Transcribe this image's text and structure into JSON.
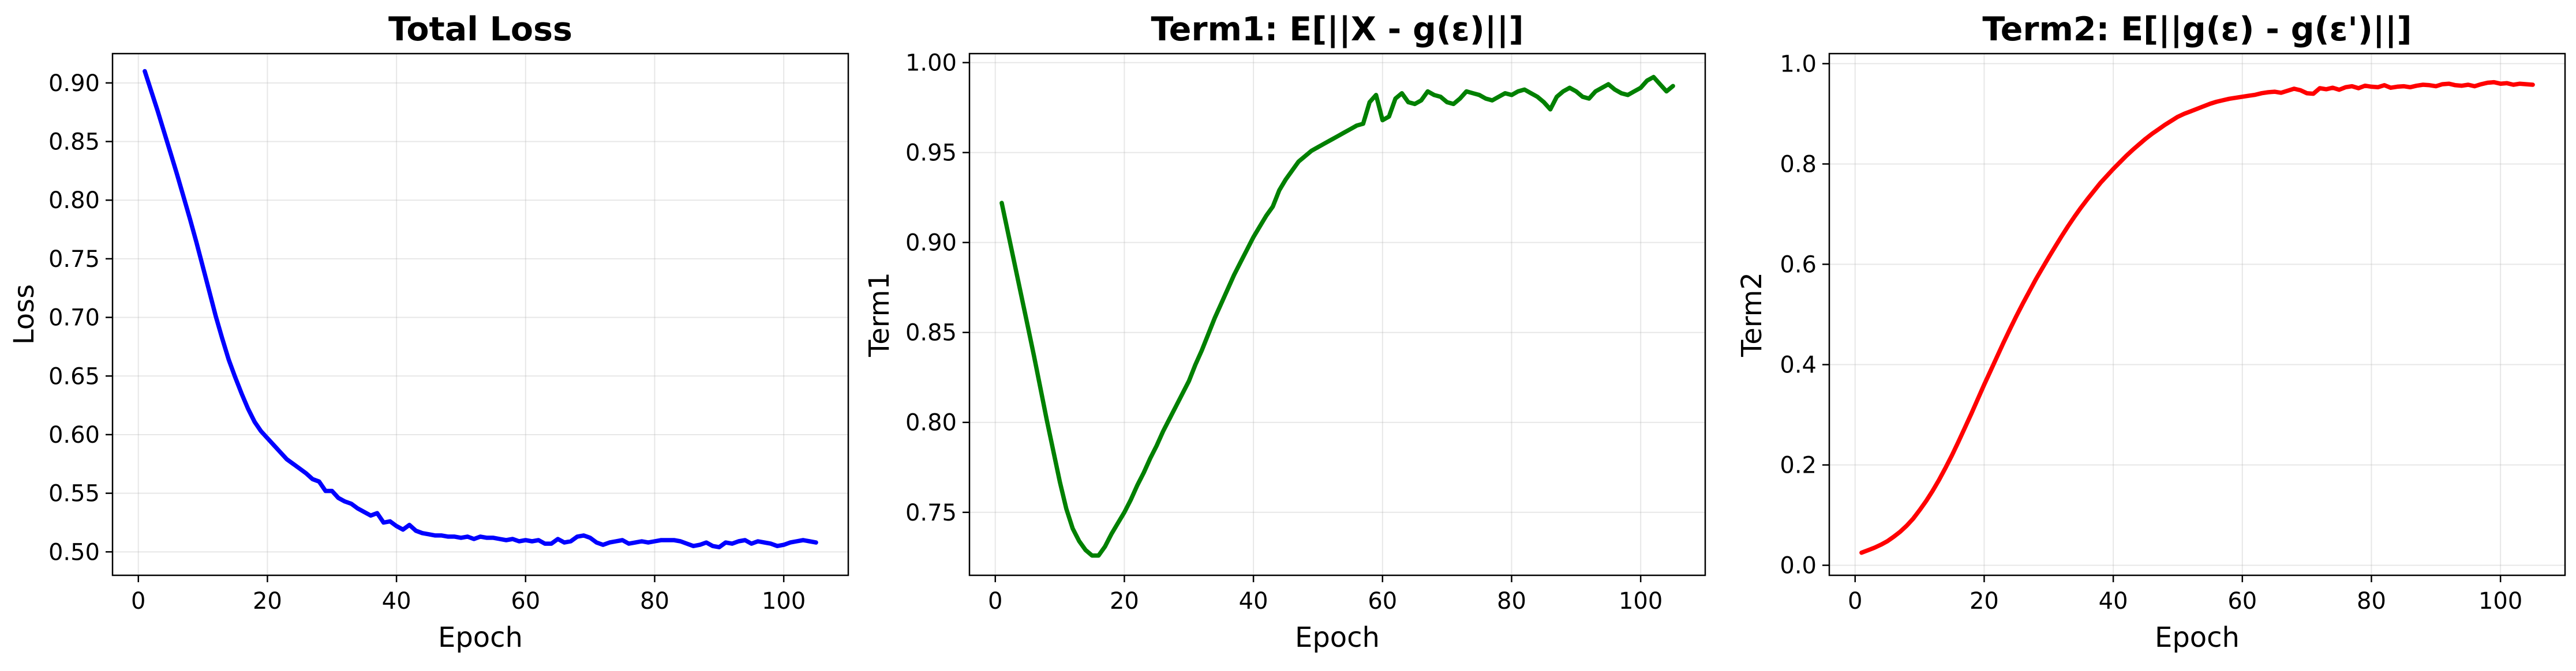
{
  "chart_data": [
    {
      "type": "line",
      "title": "Total Loss",
      "xlabel": "Epoch",
      "ylabel": "Loss",
      "xlim": [
        -4,
        110
      ],
      "ylim": [
        0.48,
        0.925
      ],
      "xticks": [
        0,
        20,
        40,
        60,
        80,
        100
      ],
      "xtick_labels": [
        "0",
        "20",
        "40",
        "60",
        "80",
        "100"
      ],
      "yticks": [
        0.5,
        0.55,
        0.6,
        0.65,
        0.7,
        0.75,
        0.8,
        0.85,
        0.9
      ],
      "ytick_labels": [
        "0.50",
        "0.55",
        "0.60",
        "0.65",
        "0.70",
        "0.75",
        "0.80",
        "0.85",
        "0.90"
      ],
      "grid": true,
      "color": "#0000ff",
      "series": [
        {
          "x": [
            1,
            2,
            3,
            4,
            5,
            6,
            7,
            8,
            9,
            10,
            11,
            12,
            13,
            14,
            15,
            16,
            17,
            18,
            19,
            20,
            21,
            22,
            23,
            24,
            25,
            26,
            27,
            28,
            29,
            30,
            31,
            32,
            33,
            34,
            35,
            36,
            37,
            38,
            39,
            40,
            41,
            42,
            43,
            44,
            45,
            46,
            47,
            48,
            49,
            50,
            51,
            52,
            53,
            54,
            55,
            56,
            57,
            58,
            59,
            60,
            61,
            62,
            63,
            64,
            65,
            66,
            67,
            68,
            69,
            70,
            71,
            72,
            73,
            74,
            75,
            76,
            77,
            78,
            79,
            80,
            81,
            82,
            83,
            84,
            85,
            86,
            87,
            88,
            89,
            90,
            91,
            92,
            93,
            94,
            95,
            96,
            97,
            98,
            99,
            100,
            101,
            102,
            103,
            104,
            105
          ],
          "values": [
            0.91,
            0.893,
            0.876,
            0.858,
            0.84,
            0.822,
            0.803,
            0.784,
            0.764,
            0.743,
            0.722,
            0.701,
            0.682,
            0.664,
            0.649,
            0.635,
            0.622,
            0.611,
            0.603,
            0.597,
            0.591,
            0.585,
            0.579,
            0.575,
            0.571,
            0.567,
            0.562,
            0.56,
            0.552,
            0.552,
            0.546,
            0.543,
            0.541,
            0.537,
            0.534,
            0.531,
            0.533,
            0.525,
            0.526,
            0.522,
            0.519,
            0.523,
            0.518,
            0.516,
            0.515,
            0.514,
            0.514,
            0.513,
            0.513,
            0.512,
            0.513,
            0.511,
            0.513,
            0.512,
            0.512,
            0.511,
            0.51,
            0.511,
            0.509,
            0.51,
            0.509,
            0.51,
            0.507,
            0.507,
            0.511,
            0.508,
            0.509,
            0.513,
            0.514,
            0.512,
            0.508,
            0.506,
            0.508,
            0.509,
            0.51,
            0.507,
            0.508,
            0.509,
            0.508,
            0.509,
            0.51,
            0.51,
            0.51,
            0.509,
            0.507,
            0.505,
            0.506,
            0.508,
            0.505,
            0.504,
            0.508,
            0.507,
            0.509,
            0.51,
            0.507,
            0.509,
            0.508,
            0.507,
            0.505,
            0.506,
            0.508,
            0.509,
            0.51,
            0.509,
            0.508
          ]
        }
      ]
    },
    {
      "type": "line",
      "title": "Term1: E[||X - g(ε)||]",
      "xlabel": "Epoch",
      "ylabel": "Term1",
      "xlim": [
        -4,
        110
      ],
      "ylim": [
        0.715,
        1.005
      ],
      "xticks": [
        0,
        20,
        40,
        60,
        80,
        100
      ],
      "xtick_labels": [
        "0",
        "20",
        "40",
        "60",
        "80",
        "100"
      ],
      "yticks": [
        0.75,
        0.8,
        0.85,
        0.9,
        0.95,
        1.0
      ],
      "ytick_labels": [
        "0.75",
        "0.80",
        "0.85",
        "0.90",
        "0.95",
        "1.00"
      ],
      "grid": true,
      "color": "#008000",
      "series": [
        {
          "x": [
            1,
            2,
            3,
            4,
            5,
            6,
            7,
            8,
            9,
            10,
            11,
            12,
            13,
            14,
            15,
            16,
            17,
            18,
            19,
            20,
            21,
            22,
            23,
            24,
            25,
            26,
            27,
            28,
            29,
            30,
            31,
            32,
            33,
            34,
            35,
            36,
            37,
            38,
            39,
            40,
            41,
            42,
            43,
            44,
            45,
            46,
            47,
            48,
            49,
            50,
            51,
            52,
            53,
            54,
            55,
            56,
            57,
            58,
            59,
            60,
            61,
            62,
            63,
            64,
            65,
            66,
            67,
            68,
            69,
            70,
            71,
            72,
            73,
            74,
            75,
            76,
            77,
            78,
            79,
            80,
            81,
            82,
            83,
            84,
            85,
            86,
            87,
            88,
            89,
            90,
            91,
            92,
            93,
            94,
            95,
            96,
            97,
            98,
            99,
            100,
            101,
            102,
            103,
            104,
            105
          ],
          "values": [
            0.922,
            0.905,
            0.888,
            0.871,
            0.854,
            0.837,
            0.819,
            0.801,
            0.784,
            0.767,
            0.752,
            0.741,
            0.734,
            0.729,
            0.726,
            0.726,
            0.731,
            0.738,
            0.744,
            0.75,
            0.757,
            0.765,
            0.772,
            0.78,
            0.787,
            0.795,
            0.802,
            0.809,
            0.816,
            0.823,
            0.832,
            0.84,
            0.849,
            0.858,
            0.866,
            0.874,
            0.882,
            0.889,
            0.896,
            0.903,
            0.909,
            0.915,
            0.92,
            0.929,
            0.935,
            0.94,
            0.945,
            0.948,
            0.951,
            0.953,
            0.955,
            0.957,
            0.959,
            0.961,
            0.963,
            0.965,
            0.966,
            0.978,
            0.982,
            0.968,
            0.97,
            0.98,
            0.983,
            0.978,
            0.977,
            0.979,
            0.984,
            0.982,
            0.981,
            0.978,
            0.977,
            0.98,
            0.984,
            0.983,
            0.982,
            0.98,
            0.979,
            0.981,
            0.983,
            0.982,
            0.984,
            0.985,
            0.983,
            0.981,
            0.978,
            0.974,
            0.981,
            0.984,
            0.986,
            0.984,
            0.981,
            0.98,
            0.984,
            0.986,
            0.988,
            0.985,
            0.983,
            0.982,
            0.984,
            0.986,
            0.99,
            0.992,
            0.988,
            0.984,
            0.987
          ]
        }
      ]
    },
    {
      "type": "line",
      "title": "Term2: E[||g(ε) - g(ε')||]",
      "xlabel": "Epoch",
      "ylabel": "Term2",
      "xlim": [
        -4,
        110
      ],
      "ylim": [
        -0.02,
        1.02
      ],
      "xticks": [
        0,
        20,
        40,
        60,
        80,
        100
      ],
      "xtick_labels": [
        "0",
        "20",
        "40",
        "60",
        "80",
        "100"
      ],
      "yticks": [
        0.0,
        0.2,
        0.4,
        0.6,
        0.8,
        1.0
      ],
      "ytick_labels": [
        "0.0",
        "0.2",
        "0.4",
        "0.6",
        "0.8",
        "1.0"
      ],
      "grid": true,
      "color": "#ff0000",
      "series": [
        {
          "x": [
            1,
            2,
            3,
            4,
            5,
            6,
            7,
            8,
            9,
            10,
            11,
            12,
            13,
            14,
            15,
            16,
            17,
            18,
            19,
            20,
            21,
            22,
            23,
            24,
            25,
            26,
            27,
            28,
            29,
            30,
            31,
            32,
            33,
            34,
            35,
            36,
            37,
            38,
            39,
            40,
            41,
            42,
            43,
            44,
            45,
            46,
            47,
            48,
            49,
            50,
            51,
            52,
            53,
            54,
            55,
            56,
            57,
            58,
            59,
            60,
            61,
            62,
            63,
            64,
            65,
            66,
            67,
            68,
            69,
            70,
            71,
            72,
            73,
            74,
            75,
            76,
            77,
            78,
            79,
            80,
            81,
            82,
            83,
            84,
            85,
            86,
            87,
            88,
            89,
            90,
            91,
            92,
            93,
            94,
            95,
            96,
            97,
            98,
            99,
            100,
            101,
            102,
            103,
            104,
            105
          ],
          "values": [
            0.025,
            0.03,
            0.035,
            0.041,
            0.048,
            0.057,
            0.067,
            0.079,
            0.093,
            0.11,
            0.128,
            0.148,
            0.17,
            0.194,
            0.219,
            0.246,
            0.274,
            0.302,
            0.331,
            0.36,
            0.388,
            0.416,
            0.444,
            0.471,
            0.497,
            0.522,
            0.546,
            0.57,
            0.592,
            0.614,
            0.635,
            0.656,
            0.676,
            0.695,
            0.713,
            0.73,
            0.746,
            0.762,
            0.776,
            0.79,
            0.803,
            0.816,
            0.828,
            0.839,
            0.85,
            0.86,
            0.869,
            0.878,
            0.886,
            0.894,
            0.9,
            0.905,
            0.91,
            0.915,
            0.92,
            0.924,
            0.927,
            0.93,
            0.932,
            0.934,
            0.936,
            0.938,
            0.941,
            0.943,
            0.944,
            0.942,
            0.946,
            0.95,
            0.947,
            0.941,
            0.94,
            0.951,
            0.949,
            0.952,
            0.948,
            0.953,
            0.955,
            0.951,
            0.956,
            0.954,
            0.953,
            0.957,
            0.952,
            0.954,
            0.955,
            0.953,
            0.956,
            0.958,
            0.957,
            0.955,
            0.959,
            0.96,
            0.957,
            0.956,
            0.958,
            0.955,
            0.959,
            0.962,
            0.963,
            0.96,
            0.961,
            0.958,
            0.96,
            0.959,
            0.958
          ]
        }
      ]
    }
  ]
}
